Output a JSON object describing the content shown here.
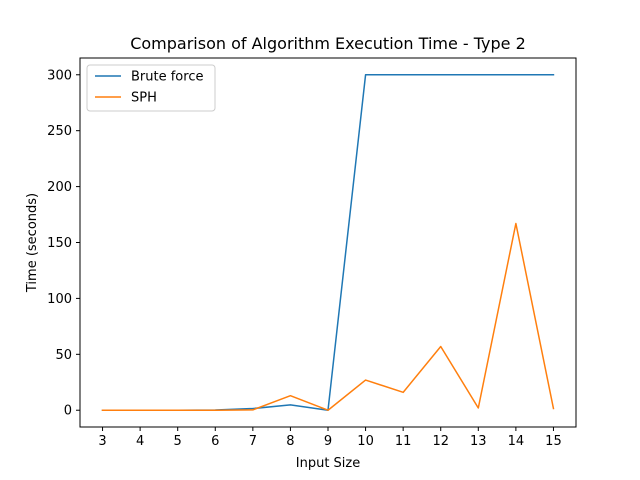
{
  "chart_data": {
    "type": "line",
    "title": "Comparison of Algorithm Execution Time - Type 2",
    "xlabel": "Input Size",
    "ylabel": "Time (seconds)",
    "x": [
      3,
      4,
      5,
      6,
      7,
      8,
      9,
      10,
      11,
      12,
      13,
      14,
      15
    ],
    "xlim": [
      2.4,
      15.6
    ],
    "ylim": [
      -15,
      315
    ],
    "xticks": [
      3,
      4,
      5,
      6,
      7,
      8,
      9,
      10,
      11,
      12,
      13,
      14,
      15
    ],
    "yticks": [
      0,
      50,
      100,
      150,
      200,
      250,
      300
    ],
    "grid": false,
    "legend_position": "top-left",
    "series": [
      {
        "name": "Brute force",
        "color": "#1f77b4",
        "values": [
          0,
          0,
          0,
          0.2,
          1.5,
          4.8,
          0,
          300,
          300,
          300,
          300,
          300,
          300
        ]
      },
      {
        "name": "SPH",
        "color": "#ff7f0e",
        "values": [
          0,
          0,
          0,
          0,
          0.3,
          13,
          0,
          27,
          16,
          57,
          2,
          167,
          1.5
        ]
      }
    ]
  }
}
